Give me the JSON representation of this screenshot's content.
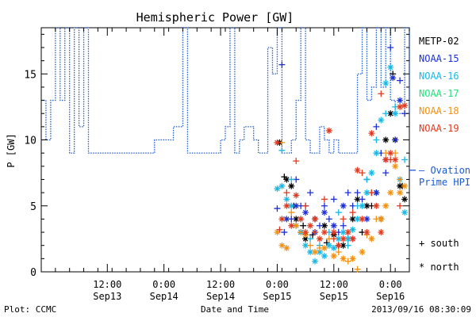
{
  "chart_data": {
    "type": "scatter",
    "title": "Hemispheric Power [GW]",
    "ylabel": "P [GW]",
    "xlabel": "Date and Time",
    "ylim": [
      0,
      18.5
    ],
    "yticks": [
      0,
      5,
      10,
      15
    ],
    "x_unit": "hours",
    "xlim": [
      -14,
      64
    ],
    "xticks": [
      {
        "x": 0,
        "l1": "12:00",
        "l2": "Sep13"
      },
      {
        "x": 12,
        "l1": "0:00",
        "l2": "Sep14"
      },
      {
        "x": 24,
        "l1": "12:00",
        "l2": "Sep14"
      },
      {
        "x": 36,
        "l1": "0:00",
        "l2": "Sep15"
      },
      {
        "x": 48,
        "l1": "12:00",
        "l2": "Sep15"
      },
      {
        "x": 60,
        "l1": "0:00",
        "l2": "Sep16"
      }
    ],
    "minor_step": 3,
    "grid": false,
    "legend_position": "right",
    "footer_left": "Plot: CCMC",
    "footer_right": "2013/09/16 08:30:09",
    "legend": [
      {
        "name": "METP-02",
        "color": "#000000"
      },
      {
        "name": "NOAA-15",
        "color": "#1c2fd6"
      },
      {
        "name": "NOAA-16",
        "color": "#18b7e6"
      },
      {
        "name": "NOAA-17",
        "color": "#22e07a"
      },
      {
        "name": "NOAA-18",
        "color": "#f29012"
      },
      {
        "name": "NOAA-19",
        "color": "#e0391e"
      }
    ],
    "ovation_label": [
      "— Ovation",
      "Prime HPI"
    ],
    "ovation_color": "#1a5bd0",
    "marker_key": [
      {
        "symbol": "+",
        "label": "south"
      },
      {
        "symbol": "*",
        "label": "north"
      }
    ],
    "ovation_hpi": {
      "color": "#1a5bd0",
      "steps": [
        [
          -14,
          13
        ],
        [
          -13,
          10
        ],
        [
          -12,
          13
        ],
        [
          -11,
          18.5
        ],
        [
          -10,
          13
        ],
        [
          -9,
          18.5
        ],
        [
          -8,
          9
        ],
        [
          -7,
          18.5
        ],
        [
          -6,
          11
        ],
        [
          -5,
          18.5
        ],
        [
          -4,
          9
        ],
        [
          -2,
          9
        ],
        [
          0,
          9
        ],
        [
          2,
          9
        ],
        [
          4,
          9
        ],
        [
          6,
          9
        ],
        [
          8,
          9
        ],
        [
          10,
          10
        ],
        [
          12,
          10
        ],
        [
          14,
          11
        ],
        [
          16,
          18.5
        ],
        [
          17,
          9
        ],
        [
          18,
          9
        ],
        [
          22,
          9
        ],
        [
          24,
          10
        ],
        [
          25,
          11
        ],
        [
          26,
          18.5
        ],
        [
          27,
          9
        ],
        [
          28,
          10
        ],
        [
          29,
          11
        ],
        [
          31,
          10
        ],
        [
          32,
          9
        ],
        [
          33,
          9
        ],
        [
          34,
          17
        ],
        [
          35,
          15
        ],
        [
          36,
          18.5
        ],
        [
          37,
          9
        ],
        [
          38,
          9
        ],
        [
          39,
          10
        ],
        [
          40,
          13
        ],
        [
          41,
          18.5
        ],
        [
          42,
          10
        ],
        [
          43,
          9
        ],
        [
          45,
          11
        ],
        [
          46,
          10
        ],
        [
          47,
          9
        ],
        [
          48,
          10
        ],
        [
          49,
          9
        ],
        [
          50,
          9
        ],
        [
          52,
          9
        ],
        [
          53,
          15
        ],
        [
          54,
          18.5
        ],
        [
          55,
          13
        ],
        [
          56,
          14
        ],
        [
          57,
          18.5
        ],
        [
          58,
          14
        ],
        [
          59,
          18.5
        ],
        [
          60,
          13
        ],
        [
          61,
          12
        ],
        [
          62,
          12
        ],
        [
          63,
          18.5
        ],
        [
          64,
          12
        ]
      ]
    },
    "series": [
      {
        "name": "METP-02",
        "color": "#000000",
        "marker": "*",
        "points": [
          [
            36.5,
            9.8
          ],
          [
            38,
            7
          ],
          [
            39,
            6.5
          ],
          [
            40,
            4
          ],
          [
            41,
            3
          ],
          [
            42,
            2.5
          ],
          [
            44,
            4
          ],
          [
            46,
            3.5
          ],
          [
            48,
            2.8
          ],
          [
            50,
            2
          ],
          [
            52,
            4
          ],
          [
            53,
            5.5
          ],
          [
            55,
            5
          ],
          [
            57,
            6
          ],
          [
            58,
            4
          ],
          [
            59,
            10
          ],
          [
            60,
            12
          ],
          [
            61,
            10
          ],
          [
            62,
            6.5
          ],
          [
            63,
            5.5
          ]
        ]
      },
      {
        "name": "METP-02",
        "color": "#000000",
        "marker": "+",
        "points": [
          [
            37.5,
            7.2
          ],
          [
            39.5,
            5
          ],
          [
            41.5,
            3.5
          ],
          [
            43.5,
            2.8
          ],
          [
            46.5,
            2.2
          ],
          [
            49,
            2
          ],
          [
            51,
            2.5
          ],
          [
            54,
            3
          ],
          [
            56,
            5
          ],
          [
            60.5,
            15
          ],
          [
            62.5,
            6.5
          ]
        ]
      },
      {
        "name": "NOAA-15",
        "color": "#1c2fd6",
        "marker": "+",
        "points": [
          [
            37,
            15.7
          ],
          [
            36,
            4.8
          ],
          [
            37.5,
            3
          ],
          [
            39,
            4
          ],
          [
            40,
            7
          ],
          [
            41,
            5
          ],
          [
            42,
            5
          ],
          [
            43,
            6
          ],
          [
            44,
            4
          ],
          [
            45,
            3.5
          ],
          [
            46,
            5
          ],
          [
            47,
            4
          ],
          [
            48,
            5.5
          ],
          [
            49,
            3
          ],
          [
            50,
            3.5
          ],
          [
            51,
            6
          ],
          [
            52,
            5
          ],
          [
            53,
            6
          ],
          [
            54,
            5.5
          ],
          [
            55,
            7
          ],
          [
            56,
            6
          ],
          [
            57,
            11
          ],
          [
            58,
            9
          ],
          [
            59,
            7.5
          ],
          [
            60,
            17
          ],
          [
            61,
            10
          ],
          [
            62,
            14.5
          ],
          [
            63,
            12
          ]
        ]
      },
      {
        "name": "NOAA-15",
        "color": "#1c2fd6",
        "marker": "*",
        "points": [
          [
            38,
            4
          ],
          [
            40,
            5
          ],
          [
            42,
            4.5
          ],
          [
            44,
            3
          ],
          [
            46,
            4.5
          ],
          [
            48,
            3.5
          ],
          [
            50,
            5
          ],
          [
            52,
            2.5
          ],
          [
            55,
            4
          ],
          [
            57,
            6
          ],
          [
            59,
            8.5
          ],
          [
            60.5,
            14.7
          ],
          [
            62,
            13
          ]
        ]
      },
      {
        "name": "NOAA-16",
        "color": "#18b7e6",
        "marker": "*",
        "points": [
          [
            36,
            6.3
          ],
          [
            37,
            6.5
          ],
          [
            38,
            5.5
          ],
          [
            39,
            5
          ],
          [
            40,
            3.5
          ],
          [
            41,
            3
          ],
          [
            42,
            2
          ],
          [
            43,
            1.5
          ],
          [
            44,
            0.8
          ],
          [
            45,
            1.5
          ],
          [
            46,
            1.2
          ],
          [
            47,
            2
          ],
          [
            48,
            1.8
          ],
          [
            49,
            2.5
          ],
          [
            50,
            3
          ],
          [
            51,
            2.5
          ],
          [
            52,
            3.2
          ],
          [
            53,
            4
          ],
          [
            54,
            5
          ],
          [
            55,
            6
          ],
          [
            56,
            7.5
          ],
          [
            57,
            9
          ],
          [
            58,
            11.5
          ],
          [
            59,
            14.3
          ],
          [
            60,
            15.5
          ],
          [
            61,
            12
          ],
          [
            62,
            7
          ],
          [
            63,
            4.5
          ]
        ]
      },
      {
        "name": "NOAA-16",
        "color": "#18b7e6",
        "marker": "+",
        "points": [
          [
            37,
            9.2
          ],
          [
            39,
            7
          ],
          [
            41,
            4
          ],
          [
            43,
            2.5
          ],
          [
            45,
            2
          ],
          [
            47,
            3
          ],
          [
            49,
            4.5
          ],
          [
            51,
            2
          ],
          [
            53,
            5
          ],
          [
            55,
            7
          ],
          [
            57,
            10
          ],
          [
            59,
            12
          ],
          [
            61,
            12.5
          ],
          [
            63,
            8.5
          ]
        ]
      },
      {
        "name": "NOAA-18",
        "color": "#f29012",
        "marker": "*",
        "points": [
          [
            36,
            3
          ],
          [
            37,
            2
          ],
          [
            38,
            1.8
          ],
          [
            40,
            3.5
          ],
          [
            42,
            2.8
          ],
          [
            44,
            1.5
          ],
          [
            46,
            1.8
          ],
          [
            48,
            1.2
          ],
          [
            50,
            1
          ],
          [
            52,
            1
          ],
          [
            54,
            1.5
          ],
          [
            56,
            2.5
          ],
          [
            58,
            4
          ],
          [
            59,
            5
          ],
          [
            60,
            6
          ],
          [
            61,
            8
          ],
          [
            62,
            6
          ],
          [
            63,
            6.5
          ]
        ]
      },
      {
        "name": "NOAA-18",
        "color": "#f29012",
        "marker": "+",
        "points": [
          [
            37,
            9.8
          ],
          [
            39,
            4.5
          ],
          [
            41,
            3
          ],
          [
            43,
            2
          ],
          [
            45,
            1.8
          ],
          [
            47,
            2.5
          ],
          [
            49,
            1.5
          ],
          [
            51,
            0.8
          ],
          [
            53,
            0.2
          ],
          [
            55,
            2.8
          ],
          [
            57,
            4
          ],
          [
            59,
            9
          ],
          [
            61,
            9
          ],
          [
            62,
            7
          ]
        ]
      },
      {
        "name": "NOAA-19",
        "color": "#e0391e",
        "marker": "*",
        "points": [
          [
            36,
            9.8
          ],
          [
            37,
            4
          ],
          [
            38,
            5
          ],
          [
            39,
            3.5
          ],
          [
            40,
            5.8
          ],
          [
            41,
            4
          ],
          [
            42,
            3
          ],
          [
            43,
            3.5
          ],
          [
            44,
            4
          ],
          [
            45,
            2.5
          ],
          [
            46,
            3
          ],
          [
            47,
            10.7
          ],
          [
            48,
            3
          ],
          [
            49,
            2
          ],
          [
            50,
            2.5
          ],
          [
            51,
            3
          ],
          [
            52,
            2.5
          ],
          [
            53,
            7.7
          ],
          [
            54,
            4
          ],
          [
            55,
            3
          ],
          [
            56,
            10.5
          ],
          [
            57,
            5
          ],
          [
            58,
            3
          ],
          [
            59,
            8.5
          ],
          [
            60,
            9
          ],
          [
            61,
            8.5
          ],
          [
            62,
            12.5
          ],
          [
            63,
            12.6
          ]
        ]
      },
      {
        "name": "NOAA-19",
        "color": "#e0391e",
        "marker": "+",
        "points": [
          [
            36.5,
            3.2
          ],
          [
            38,
            6
          ],
          [
            40,
            8.4
          ],
          [
            42,
            5
          ],
          [
            44,
            3
          ],
          [
            46,
            5.5
          ],
          [
            48,
            2.5
          ],
          [
            50,
            4
          ],
          [
            52,
            4.5
          ],
          [
            54,
            7.5
          ],
          [
            56,
            6
          ],
          [
            58,
            13.5
          ],
          [
            60,
            8.5
          ],
          [
            62,
            5
          ]
        ]
      }
    ]
  }
}
